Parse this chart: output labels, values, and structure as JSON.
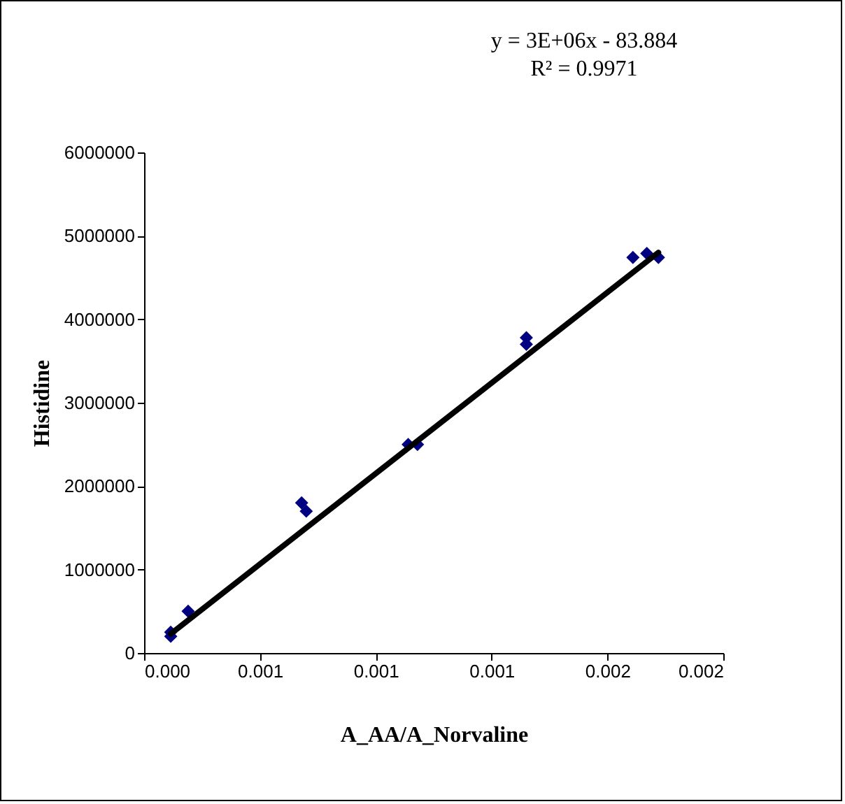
{
  "chart_data": {
    "type": "scatter",
    "xlabel": "A_AA/A_Norvaline",
    "ylabel": "Histidine",
    "annotations": [
      "y = 3E+06x - 83.884",
      "R² = 0.9971"
    ],
    "xlim": [
      0,
      0.0025
    ],
    "xticks": [
      {
        "value": 0,
        "label": "0.000"
      },
      {
        "value": 0.0005,
        "label": "0.001"
      },
      {
        "value": 0.001,
        "label": "0.001"
      },
      {
        "value": 0.0015,
        "label": "0.001"
      },
      {
        "value": 0.002,
        "label": "0.002"
      },
      {
        "value": 0.0025,
        "label": "0.002"
      }
    ],
    "ylim": [
      0,
      6000000
    ],
    "yticks": [
      0,
      1000000,
      2000000,
      3000000,
      4000000,
      5000000,
      6000000
    ],
    "grid": false,
    "series": [
      {
        "marker": "diamond",
        "color": "#000080",
        "x": [
          0.000115,
          0.000115,
          0.00019,
          0.00068,
          0.0007,
          0.00114,
          0.00118,
          0.00165,
          0.00165,
          0.00211,
          0.00217,
          0.00222
        ],
        "values": [
          250000,
          200000,
          500000,
          1800000,
          1700000,
          2500000,
          2500000,
          3780000,
          3700000,
          4740000,
          4790000,
          4740000
        ]
      },
      {
        "type": "line",
        "color": "#000000",
        "line_style": "solid",
        "x": [
          0.000115,
          0.00222
        ],
        "values": [
          230000,
          4800000
        ]
      }
    ]
  }
}
